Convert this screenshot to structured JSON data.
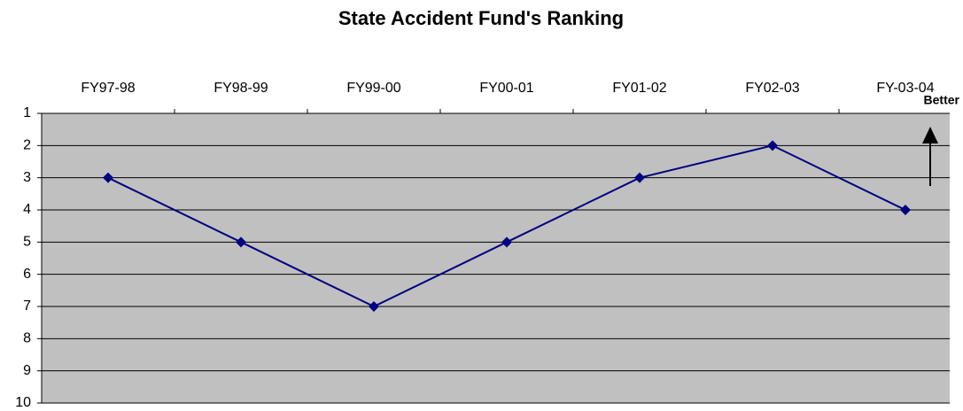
{
  "chart_data": {
    "type": "line",
    "title": "State Accident Fund's Ranking",
    "categories": [
      "FY97-98",
      "FY98-99",
      "FY99-00",
      "FY00-01",
      "FY01-02",
      "FY02-03",
      "FY-03-04"
    ],
    "series": [
      {
        "name": "State Accident Fund",
        "color": "#000080",
        "values": [
          3,
          5,
          7,
          5,
          3,
          2,
          4
        ]
      }
    ],
    "ylim": [
      1,
      10
    ],
    "yticks": [
      1,
      2,
      3,
      4,
      5,
      6,
      7,
      8,
      9,
      10
    ],
    "y_inverted": true,
    "grid": true,
    "x_axis_position": "top",
    "plot_background": "#c0c0c0",
    "annotations": [
      {
        "text": "Better"
      }
    ]
  }
}
